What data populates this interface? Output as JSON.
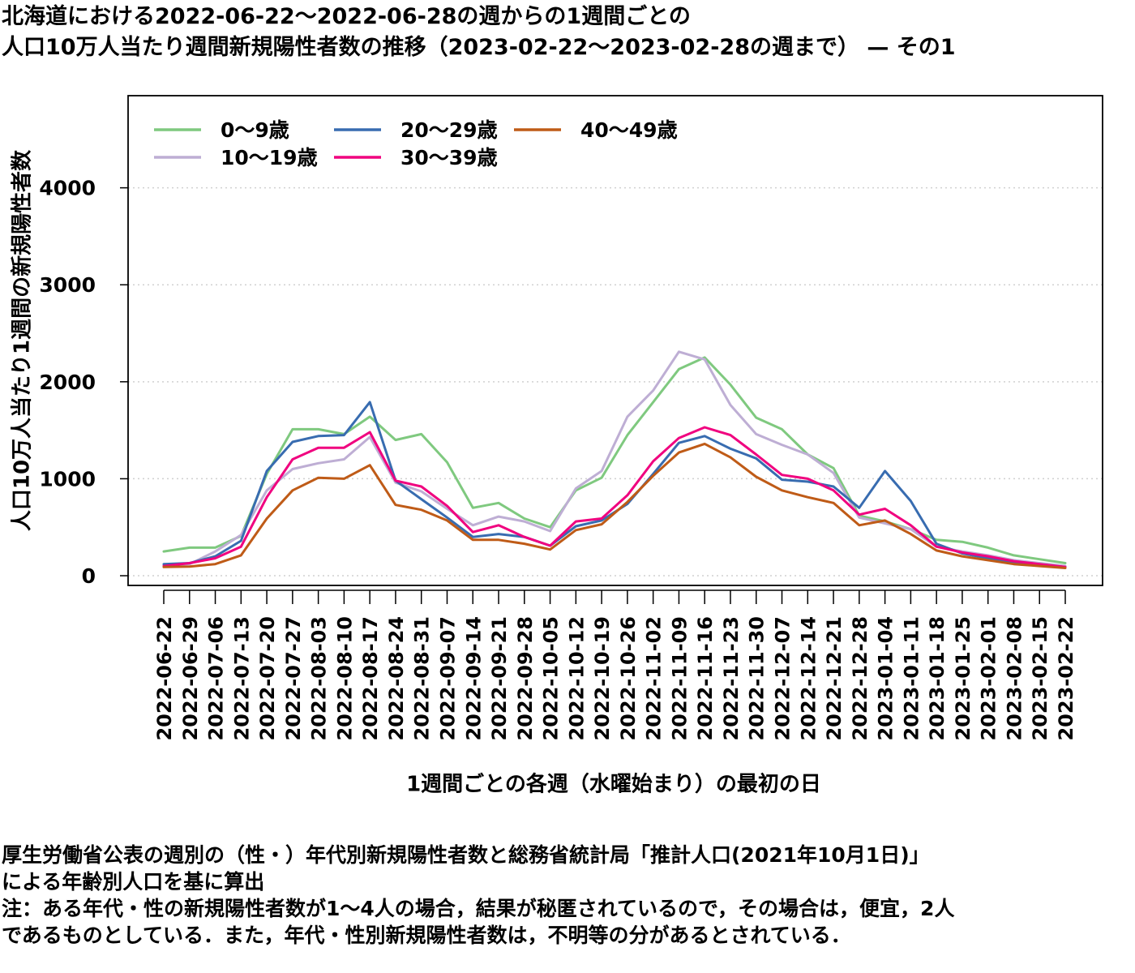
{
  "title_lines": [
    "北海道における2022-06-22～2022-06-28の週からの1週間ごとの",
    "人口10万人当たり週間新規陽性者数の推移（2023-02-22～2023-02-28の週まで） — その1"
  ],
  "footer_lines": [
    "厚生労働省公表の週別の（性・）年代別新規陽性者数と総務省統計局「推計人口(2021年10月1日)」",
    "による年齢別人口を基に算出",
    "注：ある年代・性の新規陽性者数が1～4人の場合，結果が秘匿されているので，その場合は，便宜，2人",
    "であるものとしている．また，年代・性別新規陽性者数は，不明等の分があるとされている．"
  ],
  "chart_data": {
    "type": "line",
    "title": "北海道における2022-06-22～2022-06-28の週からの1週間ごとの 人口10万人当たり週間新規陽性者数の推移（2023-02-22～2023-02-28の週まで） — その1",
    "xlabel": "1週間ごとの各週（水曜始まり）の最初の日",
    "ylabel": "人口10万人当たり1週間の新規陽性者数",
    "ylim": [
      -100,
      4950
    ],
    "yticks": [
      0,
      1000,
      2000,
      3000,
      4000
    ],
    "grid": "horizontal dotted",
    "legend_position": "top-left",
    "categories": [
      "2022-06-22",
      "2022-06-29",
      "2022-07-06",
      "2022-07-13",
      "2022-07-20",
      "2022-07-27",
      "2022-08-03",
      "2022-08-10",
      "2022-08-17",
      "2022-08-24",
      "2022-08-31",
      "2022-09-07",
      "2022-09-14",
      "2022-09-21",
      "2022-09-28",
      "2022-10-05",
      "2022-10-12",
      "2022-10-19",
      "2022-10-26",
      "2022-11-02",
      "2022-11-09",
      "2022-11-16",
      "2022-11-23",
      "2022-11-30",
      "2022-12-07",
      "2022-12-14",
      "2022-12-21",
      "2022-12-28",
      "2023-01-04",
      "2023-01-11",
      "2023-01-18",
      "2023-01-25",
      "2023-02-01",
      "2023-02-08",
      "2023-02-15",
      "2023-02-22"
    ],
    "series": [
      {
        "name": "0～9歳",
        "color": "#7fc97f",
        "values": [
          250,
          290,
          290,
          410,
          1050,
          1510,
          1510,
          1460,
          1640,
          1400,
          1460,
          1170,
          700,
          750,
          590,
          500,
          880,
          1010,
          1450,
          1790,
          2130,
          2250,
          1970,
          1630,
          1510,
          1250,
          1110,
          620,
          560,
          480,
          370,
          350,
          290,
          210,
          170,
          130
        ]
      },
      {
        "name": "10～19歳",
        "color": "#beaed4",
        "values": [
          110,
          120,
          250,
          420,
          880,
          1100,
          1160,
          1200,
          1430,
          960,
          870,
          690,
          520,
          610,
          560,
          460,
          900,
          1080,
          1640,
          1910,
          2310,
          2230,
          1760,
          1460,
          1350,
          1250,
          1060,
          600,
          540,
          480,
          300,
          250,
          210,
          160,
          130,
          100
        ]
      },
      {
        "name": "20～29歳",
        "color": "#386cb0",
        "values": [
          120,
          130,
          200,
          360,
          1080,
          1380,
          1440,
          1450,
          1790,
          980,
          790,
          600,
          400,
          430,
          400,
          310,
          510,
          570,
          740,
          1050,
          1370,
          1440,
          1310,
          1210,
          990,
          970,
          920,
          700,
          1080,
          770,
          330,
          230,
          180,
          140,
          110,
          90
        ]
      },
      {
        "name": "30～39歳",
        "color": "#f0027f",
        "values": [
          100,
          130,
          180,
          300,
          810,
          1200,
          1320,
          1320,
          1480,
          980,
          920,
          720,
          450,
          520,
          400,
          310,
          560,
          590,
          830,
          1180,
          1420,
          1530,
          1450,
          1250,
          1040,
          1000,
          880,
          630,
          690,
          520,
          300,
          240,
          200,
          150,
          120,
          90
        ]
      },
      {
        "name": "40～49歳",
        "color": "#bf5b17",
        "values": [
          90,
          95,
          120,
          210,
          590,
          880,
          1010,
          1000,
          1140,
          730,
          680,
          570,
          370,
          370,
          330,
          270,
          470,
          530,
          760,
          1030,
          1270,
          1360,
          1220,
          1020,
          880,
          810,
          750,
          520,
          570,
          430,
          260,
          200,
          160,
          120,
          100,
          80
        ]
      }
    ]
  }
}
